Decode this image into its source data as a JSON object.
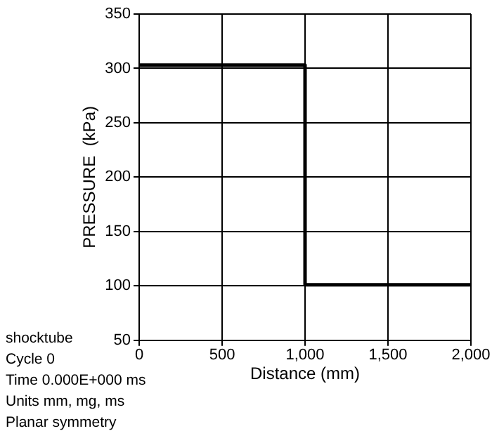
{
  "chart_data": {
    "type": "line",
    "xlabel": "Distance (mm)",
    "ylabel": "PRESSURE  (kPa)",
    "x": [
      0,
      1000,
      1000,
      2000
    ],
    "series": [
      {
        "color": "#000000",
        "values": [
          303,
          303,
          101,
          101
        ]
      }
    ],
    "xlim": [
      0,
      2000
    ],
    "xticks": [
      0,
      500,
      {
        "value": 1000,
        "label": "1,000"
      },
      {
        "value": 1500,
        "label": "1,500"
      },
      {
        "value": 2000,
        "label": "2,000"
      }
    ],
    "ylim": [
      50,
      350
    ],
    "yticks": [
      50,
      100,
      150,
      200,
      250,
      300,
      350
    ],
    "grid": true,
    "annotations": [
      "shocktube",
      "Cycle 0",
      "Time 0.000E+000 ms",
      "Units mm, mg, ms",
      "Planar symmetry"
    ]
  }
}
